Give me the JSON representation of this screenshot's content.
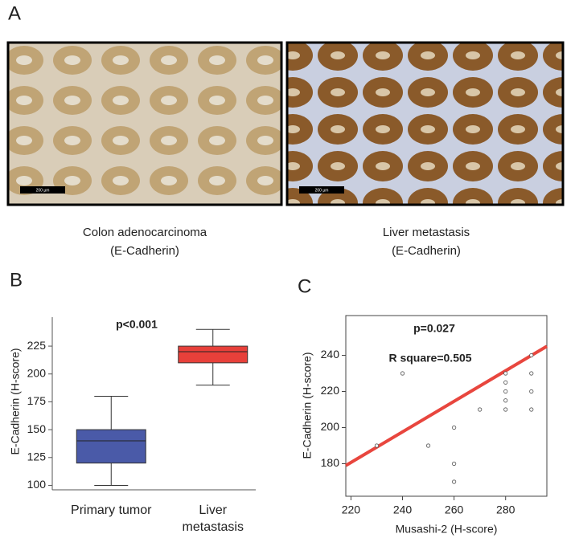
{
  "panel_labels": [
    "A",
    "B",
    "C"
  ],
  "images": [
    {
      "caption": [
        "Colon adenocarcinoma",
        "(E-Cadherin)"
      ],
      "scale_bar": "200 µm"
    },
    {
      "caption": [
        "Liver metastasis",
        "(E-Cadherin)"
      ],
      "scale_bar": "200 µm"
    }
  ],
  "chart_data": [
    {
      "type": "box",
      "ylabel": "E-Cadherin (H-score)",
      "annotation": "p<0.001",
      "categories": [
        "Primary tumor",
        "Liver metastasis"
      ],
      "low": [
        100,
        190
      ],
      "q1": [
        120,
        210
      ],
      "median": [
        140,
        220
      ],
      "q3": [
        150,
        225
      ],
      "high": [
        180,
        240
      ],
      "colors": [
        "#4a5aa8",
        "#e8403a"
      ],
      "ylim": [
        96,
        251
      ],
      "yticks": [
        100,
        125,
        150,
        175,
        200,
        225
      ]
    },
    {
      "type": "scatter",
      "xlabel": "Musashi-2 (H-score)",
      "ylabel": "E-Cadherin (H-score)",
      "annotations": [
        "p=0.027",
        "R square=0.505"
      ],
      "x": [
        230,
        240,
        250,
        260,
        260,
        260,
        270,
        280,
        280,
        280,
        280,
        280,
        290,
        290,
        290,
        290
      ],
      "values": [
        190,
        230,
        190,
        200,
        180,
        170,
        210,
        230,
        225,
        220,
        215,
        210,
        240,
        230,
        220,
        210
      ],
      "trend": {
        "x": [
          218,
          296
        ],
        "values": [
          179,
          245
        ],
        "color": "#e8463e"
      },
      "xlim": [
        218,
        296
      ],
      "ylim": [
        162,
        262
      ],
      "xticks": [
        220,
        240,
        260,
        280
      ],
      "yticks": [
        180,
        200,
        220,
        240
      ]
    }
  ]
}
